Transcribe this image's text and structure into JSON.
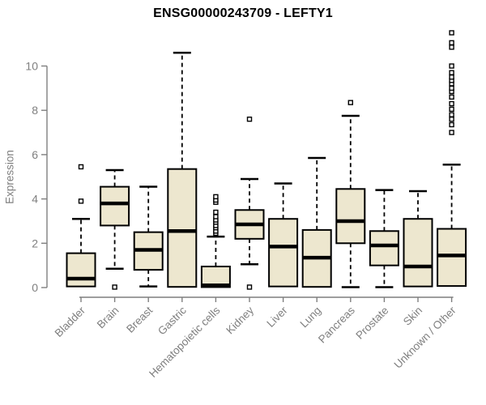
{
  "chart_data": {
    "type": "boxplot",
    "title": "ENSG00000243709 - LEFTY1",
    "ylabel": "Expression",
    "xlabel": "",
    "ylim": [
      0,
      10
    ],
    "yticks": [
      0,
      2,
      4,
      6,
      8,
      10
    ],
    "grid": false,
    "legend": null,
    "categories": [
      "Bladder",
      "Brain",
      "Breast",
      "Gastric",
      "Hematopoietic cells",
      "Kidney",
      "Liver",
      "Lung",
      "Pancreas",
      "Prostate",
      "Skin",
      "Unknown / Other"
    ],
    "series": [
      {
        "name": "Bladder",
        "whislo": 0.05,
        "q1": 0.05,
        "med": 0.4,
        "q3": 1.55,
        "whishi": 3.1,
        "outliers": [
          3.9,
          5.45
        ]
      },
      {
        "name": "Brain",
        "whislo": 0.85,
        "q1": 2.8,
        "med": 3.8,
        "q3": 4.55,
        "whishi": 5.3,
        "outliers": [
          0.02
        ]
      },
      {
        "name": "Breast",
        "whislo": 0.05,
        "q1": 0.8,
        "med": 1.7,
        "q3": 2.5,
        "whishi": 4.55,
        "outliers": []
      },
      {
        "name": "Gastric",
        "whislo": 0.03,
        "q1": 0.03,
        "med": 2.55,
        "q3": 5.35,
        "whishi": 10.6,
        "outliers": []
      },
      {
        "name": "Hematopoietic cells",
        "whislo": 0.02,
        "q1": 0.02,
        "med": 0.1,
        "q3": 0.95,
        "whishi": 2.3,
        "outliers": [
          2.45,
          2.55,
          2.7,
          2.8,
          2.95,
          3.05,
          3.2,
          3.4,
          3.85,
          3.95,
          4.1
        ]
      },
      {
        "name": "Kidney",
        "whislo": 1.05,
        "q1": 2.2,
        "med": 2.85,
        "q3": 3.5,
        "whishi": 4.9,
        "outliers": [
          0.02,
          7.6
        ]
      },
      {
        "name": "Liver",
        "whislo": 0.05,
        "q1": 0.05,
        "med": 1.85,
        "q3": 3.1,
        "whishi": 4.7,
        "outliers": []
      },
      {
        "name": "Lung",
        "whislo": 0.03,
        "q1": 0.03,
        "med": 1.35,
        "q3": 2.6,
        "whishi": 5.85,
        "outliers": []
      },
      {
        "name": "Pancreas",
        "whislo": 0.02,
        "q1": 2.0,
        "med": 3.0,
        "q3": 4.45,
        "whishi": 7.75,
        "outliers": [
          8.35
        ]
      },
      {
        "name": "Prostate",
        "whislo": 0.02,
        "q1": 1.0,
        "med": 1.9,
        "q3": 2.55,
        "whishi": 4.4,
        "outliers": []
      },
      {
        "name": "Skin",
        "whislo": 0.05,
        "q1": 0.05,
        "med": 0.95,
        "q3": 3.1,
        "whishi": 4.35,
        "outliers": []
      },
      {
        "name": "Unknown / Other",
        "whislo": 0.07,
        "q1": 0.07,
        "med": 1.45,
        "q3": 2.65,
        "whishi": 5.55,
        "outliers": [
          7.0,
          7.35,
          7.6,
          7.8,
          8.05,
          8.3,
          8.6,
          8.85,
          9.0,
          9.2,
          9.35,
          9.5,
          9.7,
          10.0,
          10.85,
          11.05,
          11.5
        ]
      }
    ],
    "colors": {
      "box_fill": "#EDE7CF",
      "box_stroke": "#000000",
      "median": "#000000",
      "whisker": "#000000",
      "outlier_stroke": "#000000",
      "outlier_fill": "#FFFFFF",
      "axis": "#7F7F7F",
      "tick_label": "#7F7F7F",
      "title_color": "#000000",
      "background": "#FFFFFF"
    }
  }
}
